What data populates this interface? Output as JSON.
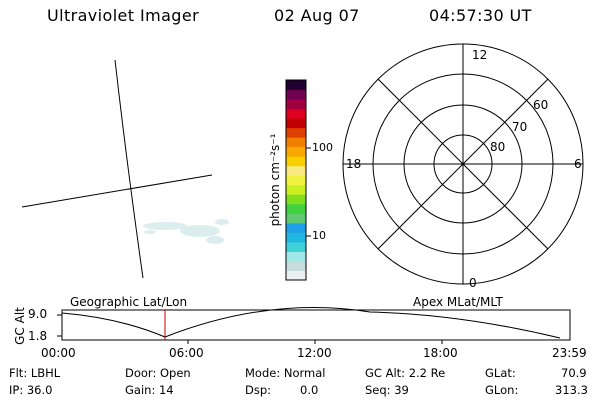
{
  "header": {
    "title": "Ultraviolet Imager",
    "date": "02 Aug 07",
    "time": "04:57:30 UT"
  },
  "colorbar": {
    "label": "photon cm⁻²s⁻¹",
    "ticks": [
      "100",
      "10"
    ],
    "colors": [
      "#e8f0f0",
      "#c8dcdc",
      "#a0e8e8",
      "#40d0d8",
      "#20b8e0",
      "#20a0e8",
      "#60c870",
      "#40d040",
      "#80e020",
      "#c8f020",
      "#f0f040",
      "#f8e880",
      "#f8d000",
      "#f8a800",
      "#f08000",
      "#e04000",
      "#c00000",
      "#e00020",
      "#a00040",
      "#700050",
      "#200030"
    ]
  },
  "polar": {
    "labels": {
      "top": "12",
      "bottom": "0",
      "left": "18",
      "right": "6"
    },
    "rings": [
      "80",
      "70",
      "60"
    ]
  },
  "mini_plot": {
    "left_title": "Geographic Lat/Lon",
    "right_title": "Apex MLat/MLT",
    "ylabel": "GC Alt",
    "y_ticks": [
      "9.0",
      "1.8"
    ],
    "x_ticks": [
      "00:00",
      "06:00",
      "12:00",
      "18:00",
      "23:59"
    ]
  },
  "info": {
    "filter": "Flt: LBHL",
    "ip": "IP: 36.0",
    "door": "Door: Open",
    "gain": "Gain: 14",
    "mode": "Mode: Normal",
    "dsp_label": "Dsp:",
    "dsp_value": "0.0",
    "gc_alt": "GC Alt: 2.2 Re",
    "seq": "Seq: 39",
    "glat_label": "GLat:",
    "glat_value": "70.9",
    "glon_label": "GLon:",
    "glon_value": "313.3"
  }
}
